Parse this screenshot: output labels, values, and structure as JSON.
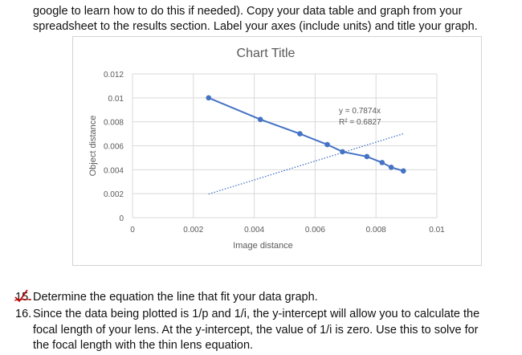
{
  "document": {
    "top_paragraph": [
      "google to learn how to do this if needed).  Copy your data table and graph from your",
      "spreadsheet to the results section. Label your axes (include units) and title your graph."
    ],
    "q15_number": "15.",
    "q15_text": "Determine the equation the line that fit your data graph.",
    "q16_number": "16.",
    "q16_text_1": "Since the data being plotted is 1/p and 1/i, the y-intercept will allow you to calculate the",
    "q16_text_2": "focal length of your lens. At the y-intercept, the value of 1/i is zero. Use this to solve for",
    "q16_text_3": "the focal length with the thin lens equation."
  },
  "chart_data": {
    "type": "scatter",
    "title": "Chart Title",
    "xlabel": "Image distance",
    "ylabel": "Object distance",
    "xlim": [
      0,
      0.01
    ],
    "ylim": [
      0,
      0.012
    ],
    "x_ticks": [
      "0",
      "0.002",
      "0.004",
      "0.006",
      "0.008",
      "0.01"
    ],
    "y_ticks": [
      "0",
      "0.002",
      "0.004",
      "0.006",
      "0.008",
      "0.01",
      "0.012"
    ],
    "grid": "horizontal",
    "series": [
      {
        "points": [
          [
            0.0025,
            0.01
          ],
          [
            0.0042,
            0.0082
          ],
          [
            0.0055,
            0.007
          ],
          [
            0.0064,
            0.0061
          ],
          [
            0.0069,
            0.0055
          ],
          [
            0.0077,
            0.0051
          ],
          [
            0.0082,
            0.0046
          ],
          [
            0.0085,
            0.0042
          ],
          [
            0.0089,
            0.0039
          ]
        ],
        "color": "#4472c4"
      }
    ],
    "trendline": {
      "x_range": [
        0.0025,
        0.0089
      ],
      "slope": 0.7874,
      "color": "#4472c4",
      "style": "dotted"
    },
    "annotation": [
      "y = 0.7874x",
      "R² = 0.6827"
    ]
  }
}
